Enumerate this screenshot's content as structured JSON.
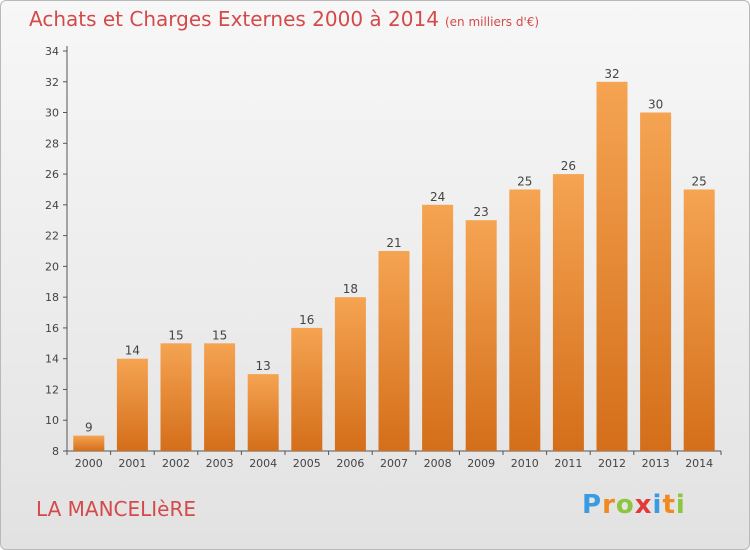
{
  "title": "Achats et Charges Externes 2000 à 2014",
  "unit": "(en milliers d'€)",
  "commune": "LA MANCELIèRE",
  "logo": {
    "letters": [
      "P",
      "r",
      "o",
      "x",
      "i",
      "t",
      "i"
    ],
    "colors": [
      "#3a9be0",
      "#f08a1c",
      "#8cc63e",
      "#e23a3a",
      "#3a9be0",
      "#f08a1c",
      "#8cc63e"
    ]
  },
  "colors": {
    "title": "#d44a4a",
    "bar_light": "#f5a452",
    "bar_dark": "#d46e1a"
  },
  "chart_data": {
    "type": "bar",
    "categories": [
      "2000",
      "2001",
      "2002",
      "2003",
      "2004",
      "2005",
      "2006",
      "2007",
      "2008",
      "2009",
      "2010",
      "2011",
      "2012",
      "2013",
      "2014"
    ],
    "values": [
      9,
      14,
      15,
      15,
      13,
      16,
      18,
      21,
      24,
      23,
      25,
      26,
      32,
      30,
      25
    ],
    "yticks": [
      8,
      10,
      12,
      14,
      16,
      18,
      20,
      22,
      24,
      26,
      28,
      30,
      32,
      34
    ],
    "ylim": [
      8,
      34
    ],
    "grid": false,
    "title": "Achats et Charges Externes 2000 à 2014",
    "xlabel": "",
    "ylabel": ""
  }
}
